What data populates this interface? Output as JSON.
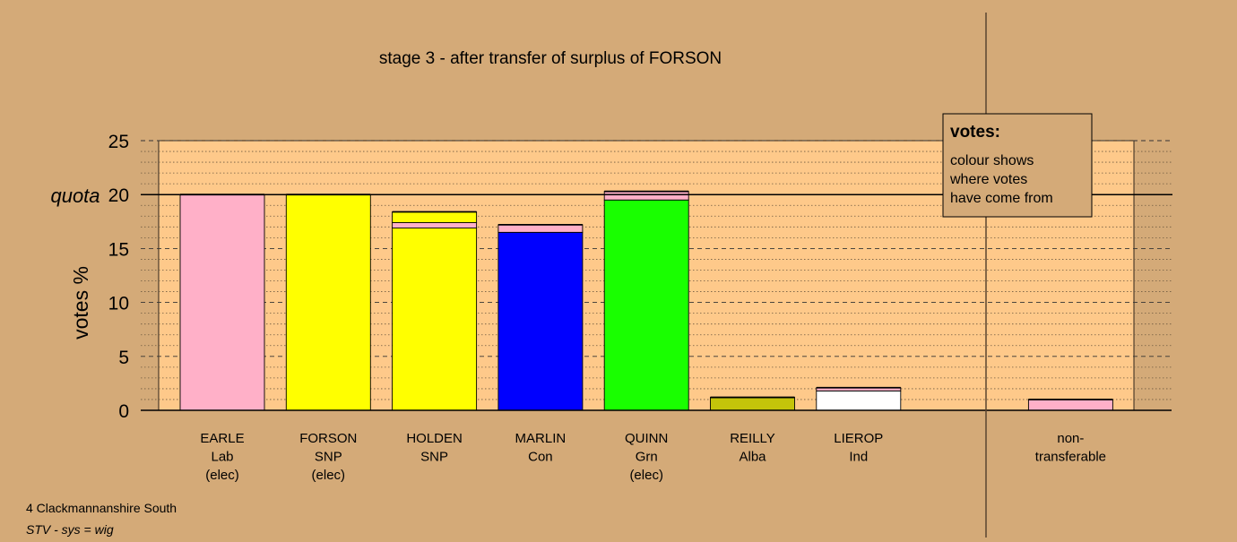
{
  "title": "stage 3 - after transfer of surplus of FORSON",
  "ylabel": "votes %",
  "quota_label": "quota",
  "footer": {
    "line1": "4 Clackmannanshire South",
    "line2": "STV - sys = wig"
  },
  "legend": {
    "title": "votes:",
    "lines": [
      "colour shows",
      "where votes",
      "have come from"
    ]
  },
  "colors": {
    "background": "#d4aa78",
    "plot_area": "#fec98a",
    "Lab": "#ffb0c8",
    "SNP": "#ffff00",
    "Con": "#0000ff",
    "Grn": "#19ff00",
    "Alba": "#c4c40a",
    "Ind": "#ffffff"
  },
  "chart_data": {
    "type": "bar",
    "stacked": true,
    "ylim": [
      0,
      25
    ],
    "yticks": [
      0,
      5,
      10,
      15,
      20,
      25
    ],
    "quota": 20,
    "grid": "dashed every 5, dotted every 1",
    "categories": [
      {
        "name": "EARLE",
        "party": "Lab",
        "note": "(elec)"
      },
      {
        "name": "FORSON",
        "party": "SNP",
        "note": "(elec)"
      },
      {
        "name": "HOLDEN",
        "party": "SNP",
        "note": ""
      },
      {
        "name": "MARLIN",
        "party": "Con",
        "note": ""
      },
      {
        "name": "QUINN",
        "party": "Grn",
        "note": "(elec)"
      },
      {
        "name": "REILLY",
        "party": "Alba",
        "note": ""
      },
      {
        "name": "LIEROP",
        "party": "Ind",
        "note": ""
      },
      {
        "name": "",
        "party": "",
        "note": ""
      },
      {
        "name": "non-",
        "party": "transferable",
        "note": ""
      }
    ],
    "stacks": [
      [
        {
          "source": "Lab",
          "value": 20.0
        }
      ],
      [
        {
          "source": "SNP",
          "value": 20.0
        }
      ],
      [
        {
          "source": "SNP",
          "value": 16.9
        },
        {
          "source": "Lab",
          "value": 0.5
        },
        {
          "source": "SNP",
          "value": 1.0
        }
      ],
      [
        {
          "source": "Con",
          "value": 16.5
        },
        {
          "source": "Lab",
          "value": 0.7
        }
      ],
      [
        {
          "source": "Grn",
          "value": 19.5
        },
        {
          "source": "Lab",
          "value": 0.8
        }
      ],
      [
        {
          "source": "Alba",
          "value": 1.2
        }
      ],
      [
        {
          "source": "Ind",
          "value": 1.8
        },
        {
          "source": "Lab",
          "value": 0.3
        }
      ],
      [],
      [
        {
          "source": "Lab",
          "value": 1.0
        }
      ]
    ]
  }
}
